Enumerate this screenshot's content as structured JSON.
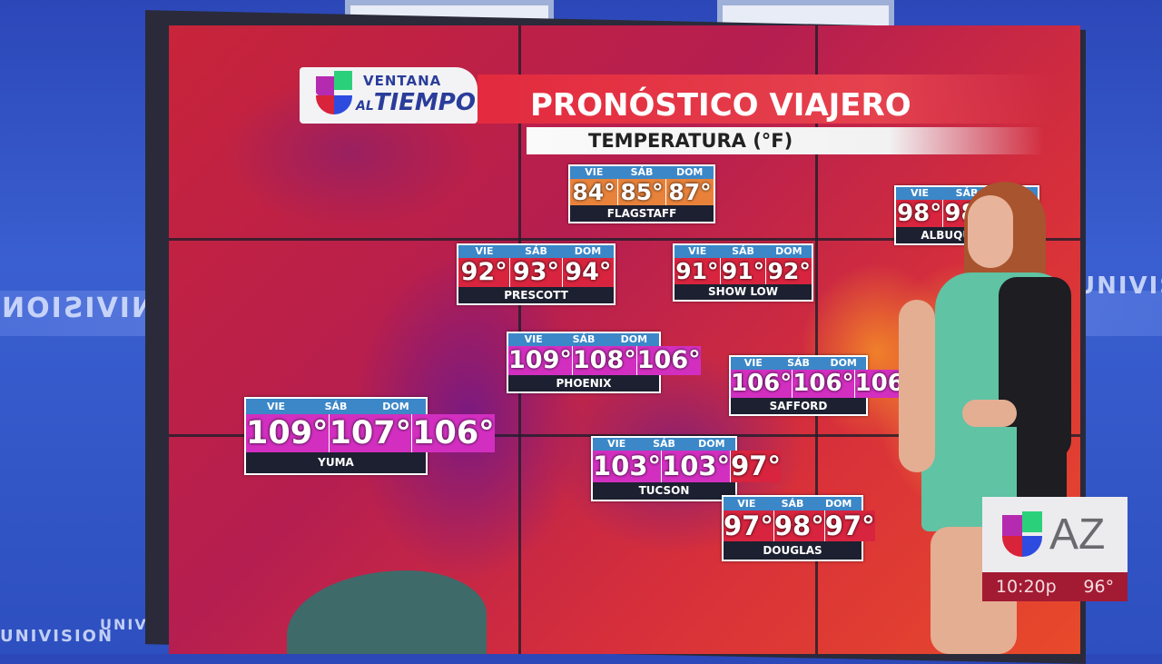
{
  "studio": {
    "wall_text_left": "UNIVISION",
    "wall_text_right": "UNIVISIO",
    "wall_text_bottom_left": "UNIVISION",
    "wall_text_bottom_right": "UNIVISION"
  },
  "header": {
    "logo_top": "VENTANA",
    "logo_al": "AL",
    "logo_bottom": "TIEMPO",
    "title": "PRONÓSTICO VIAJERO",
    "subtitle": "TEMPERATURA (°F)"
  },
  "days": [
    "VIE",
    "SÁB",
    "DOM"
  ],
  "colors": {
    "orange": "#e8823a",
    "red": "#d8243e",
    "magenta": "#d22fc0",
    "header_blue": "#3b87c8"
  },
  "cities": [
    {
      "name": "FLAGSTAFF",
      "temps": [
        "84°",
        "85°",
        "87°"
      ],
      "tone": [
        "orange",
        "orange",
        "orange"
      ]
    },
    {
      "name": "PRESCOTT",
      "temps": [
        "92°",
        "93°",
        "94°"
      ],
      "tone": [
        "red",
        "red",
        "red"
      ]
    },
    {
      "name": "SHOW LOW",
      "temps": [
        "91°",
        "91°",
        "92°"
      ],
      "tone": [
        "red",
        "red",
        "red"
      ]
    },
    {
      "name": "PHOENIX",
      "temps": [
        "109°",
        "108°",
        "106°"
      ],
      "tone": [
        "magenta",
        "magenta",
        "magenta"
      ]
    },
    {
      "name": "SAFFORD",
      "temps": [
        "106°",
        "106°",
        "106°"
      ],
      "tone": [
        "magenta",
        "magenta",
        "magenta"
      ]
    },
    {
      "name": "YUMA",
      "temps": [
        "109°",
        "107°",
        "106°"
      ],
      "tone": [
        "magenta",
        "magenta",
        "magenta"
      ]
    },
    {
      "name": "TUCSON",
      "temps": [
        "103°",
        "103°",
        "97°"
      ],
      "tone": [
        "magenta",
        "magenta",
        "red"
      ]
    },
    {
      "name": "DOUGLAS",
      "temps": [
        "97°",
        "98°",
        "97°"
      ],
      "tone": [
        "red",
        "red",
        "red"
      ]
    },
    {
      "name": "ALBUQUERQUE",
      "temps": [
        "98°",
        "98°",
        ""
      ],
      "tone": [
        "red",
        "red",
        "red"
      ]
    }
  ],
  "station_bug": {
    "logo_text": "AZ",
    "time": "10:20p",
    "temperature": "96°"
  }
}
